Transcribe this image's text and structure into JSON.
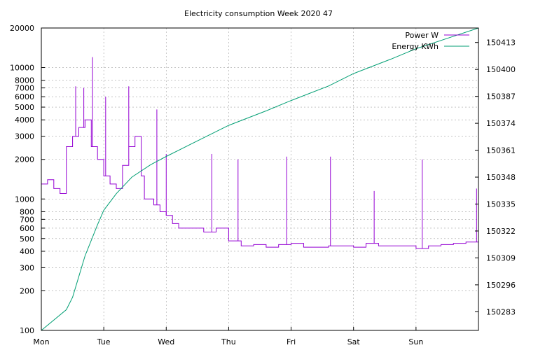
{
  "chart_data": {
    "type": "line",
    "title": "Electricity consumption Week 2020 47",
    "x_ticks": [
      "Mon",
      "Tue",
      "Wed",
      "Thu",
      "Fri",
      "Sat",
      "Sun"
    ],
    "x_range_days": [
      0,
      7.0
    ],
    "y_left": {
      "scale": "log",
      "range": [
        100,
        20000
      ],
      "tick_labels": [
        "100",
        "200",
        "300",
        "400",
        "500",
        "600",
        "700",
        "800",
        "1000",
        "2000",
        "3000",
        "4000",
        "5000",
        "6000",
        "7000",
        "8000",
        "10000",
        "20000"
      ],
      "tick_values": [
        100,
        200,
        300,
        400,
        500,
        600,
        700,
        800,
        1000,
        2000,
        3000,
        4000,
        5000,
        6000,
        7000,
        8000,
        10000,
        20000
      ]
    },
    "y_right": {
      "scale": "linear",
      "range": [
        150274,
        150420
      ],
      "tick_labels": [
        "150283",
        "150296",
        "150309",
        "150322",
        "150335",
        "150348",
        "150361",
        "150374",
        "150387",
        "150400",
        "150413"
      ],
      "tick_values": [
        150283,
        150296,
        150309,
        150322,
        150335,
        150348,
        150361,
        150374,
        150387,
        150400,
        150413
      ]
    },
    "grid": true,
    "legend_position": "top-right",
    "series": [
      {
        "name": "Power W",
        "axis": "left",
        "color": "#9400d3",
        "points": [
          [
            0.0,
            1300
          ],
          [
            0.1,
            1400
          ],
          [
            0.2,
            1200
          ],
          [
            0.3,
            1100
          ],
          [
            0.4,
            2500
          ],
          [
            0.5,
            3000
          ],
          [
            0.6,
            3500
          ],
          [
            0.7,
            4000
          ],
          [
            0.8,
            2500
          ],
          [
            0.9,
            2000
          ],
          [
            1.0,
            1500
          ],
          [
            1.1,
            1300
          ],
          [
            1.2,
            1200
          ],
          [
            1.3,
            1800
          ],
          [
            1.4,
            2500
          ],
          [
            1.5,
            3000
          ],
          [
            1.6,
            1500
          ],
          [
            1.65,
            1000
          ],
          [
            1.8,
            900
          ],
          [
            1.9,
            800
          ],
          [
            2.0,
            750
          ],
          [
            2.1,
            650
          ],
          [
            2.2,
            600
          ],
          [
            2.4,
            600
          ],
          [
            2.6,
            560
          ],
          [
            2.8,
            600
          ],
          [
            3.0,
            480
          ],
          [
            3.2,
            440
          ],
          [
            3.4,
            450
          ],
          [
            3.6,
            430
          ],
          [
            3.8,
            450
          ],
          [
            4.0,
            460
          ],
          [
            4.2,
            430
          ],
          [
            4.4,
            430
          ],
          [
            4.6,
            440
          ],
          [
            4.8,
            440
          ],
          [
            5.0,
            430
          ],
          [
            5.2,
            460
          ],
          [
            5.4,
            440
          ],
          [
            5.6,
            440
          ],
          [
            5.8,
            440
          ],
          [
            6.0,
            420
          ],
          [
            6.2,
            440
          ],
          [
            6.4,
            450
          ],
          [
            6.6,
            460
          ],
          [
            6.8,
            470
          ],
          [
            7.0,
            480
          ]
        ],
        "peaks": [
          [
            0.55,
            7200
          ],
          [
            0.68,
            7000
          ],
          [
            0.82,
            12000
          ],
          [
            1.03,
            6000
          ],
          [
            1.4,
            7200
          ],
          [
            1.85,
            4800
          ],
          [
            2.0,
            2200
          ],
          [
            2.73,
            2200
          ],
          [
            3.15,
            2000
          ],
          [
            3.93,
            2100
          ],
          [
            4.63,
            2100
          ],
          [
            5.33,
            1150
          ],
          [
            6.1,
            2000
          ],
          [
            6.97,
            1200
          ]
        ]
      },
      {
        "name": "Energy KWh",
        "axis": "right",
        "color": "#009e73",
        "points": [
          [
            0.0,
            150274
          ],
          [
            0.4,
            150284
          ],
          [
            0.5,
            150290
          ],
          [
            0.7,
            150310
          ],
          [
            0.9,
            150325
          ],
          [
            1.0,
            150332
          ],
          [
            1.2,
            150340
          ],
          [
            1.45,
            150348
          ],
          [
            1.75,
            150354
          ],
          [
            2.0,
            150358
          ],
          [
            2.4,
            150364
          ],
          [
            3.0,
            150373
          ],
          [
            3.6,
            150380
          ],
          [
            4.0,
            150385
          ],
          [
            4.6,
            150392
          ],
          [
            5.0,
            150398
          ],
          [
            5.6,
            150405
          ],
          [
            6.0,
            150410
          ],
          [
            6.5,
            150415
          ],
          [
            7.0,
            150420
          ]
        ]
      }
    ]
  }
}
